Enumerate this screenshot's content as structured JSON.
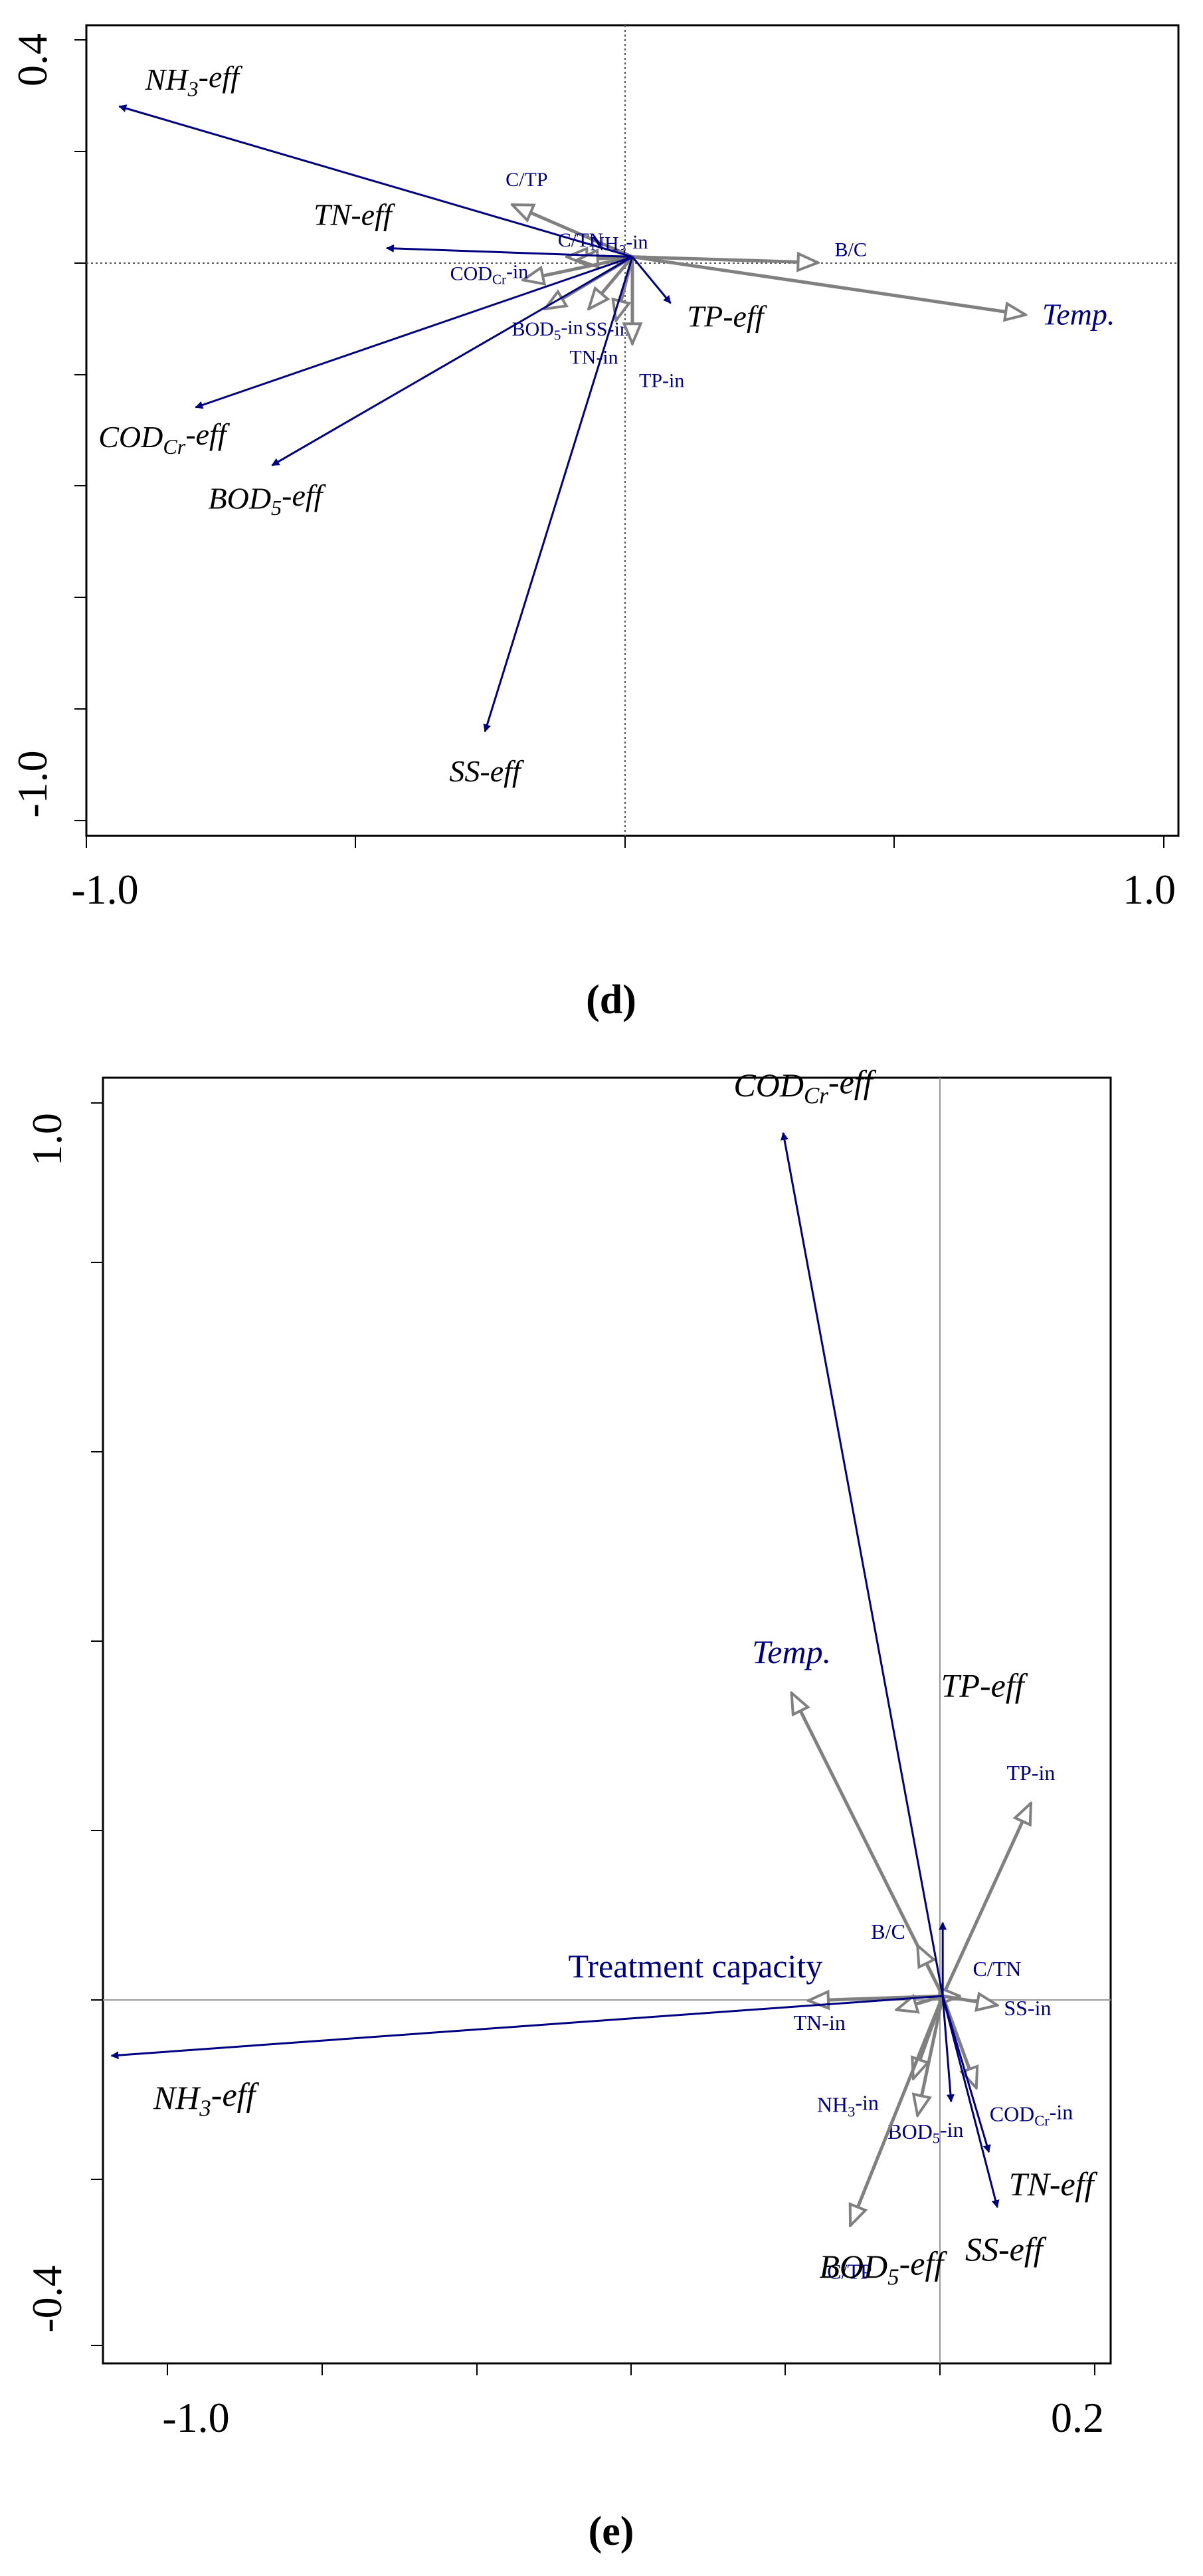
{
  "chart_data": [
    {
      "type": "biplot",
      "panel_label": "(d)",
      "xlim": [
        -1.0,
        1.0
      ],
      "ylim": [
        -1.0,
        0.4
      ],
      "x_tick_labels": [
        "-1.0",
        "1.0"
      ],
      "y_tick_labels": [
        "0.4",
        "-1.0"
      ],
      "grid": false,
      "colors": {
        "response": "#000080",
        "explanatory": "#808080",
        "frame": "#000000"
      },
      "response_vectors": [
        {
          "label": "NH3-eff",
          "base": "NH",
          "sub": "3",
          "suffix": "-eff",
          "x": -0.94,
          "y": 0.26
        },
        {
          "label": "TN-eff",
          "base": "TN-eff",
          "sub": "",
          "suffix": "",
          "x": -0.45,
          "y": 0.015
        },
        {
          "label": "TP-eff",
          "base": "TP-eff",
          "sub": "",
          "suffix": "",
          "x": 0.07,
          "y": -0.08
        },
        {
          "label": "CODCr-eff",
          "base": "COD",
          "sub": "Cr",
          "suffix": "-eff",
          "x": -0.8,
          "y": -0.26
        },
        {
          "label": "BOD5-eff",
          "base": "BOD",
          "sub": "5",
          "suffix": "-eff",
          "x": -0.66,
          "y": -0.36
        },
        {
          "label": "SS-eff",
          "base": "SS-eff",
          "sub": "",
          "suffix": "",
          "x": -0.27,
          "y": -0.82
        }
      ],
      "explanatory_vectors": [
        {
          "label": "C/TP",
          "base": "C/TP",
          "sub": "",
          "suffix": "",
          "x": -0.22,
          "y": 0.09
        },
        {
          "label": "NH3-in",
          "base": "NH",
          "sub": "3",
          "suffix": "-in",
          "x": -0.12,
          "y": 0.0
        },
        {
          "label": "C/TN",
          "base": "C/TN",
          "sub": "",
          "suffix": "",
          "x": -0.1,
          "y": -0.005
        },
        {
          "label": "CODCr-in",
          "base": "COD",
          "sub": "Cr",
          "suffix": "-in",
          "x": -0.2,
          "y": -0.04
        },
        {
          "label": "BOD5-in",
          "base": "BOD",
          "sub": "5",
          "suffix": "-in",
          "x": -0.16,
          "y": -0.09
        },
        {
          "label": "SS-in",
          "base": "SS-in",
          "sub": "",
          "suffix": "",
          "x": -0.08,
          "y": -0.09
        },
        {
          "label": "TN-in",
          "base": "TN-in",
          "sub": "",
          "suffix": "",
          "x": -0.03,
          "y": -0.11
        },
        {
          "label": "TP-in",
          "base": "TP-in",
          "sub": "",
          "suffix": "",
          "x": 0.0,
          "y": -0.15
        },
        {
          "label": "B/C",
          "base": "B/C",
          "sub": "",
          "suffix": "",
          "x": 0.34,
          "y": -0.01
        },
        {
          "label": "Temp.",
          "base": "Temp.",
          "sub": "",
          "suffix": "",
          "x": 0.72,
          "y": -0.1
        }
      ]
    },
    {
      "type": "biplot",
      "panel_label": "(e)",
      "xlim": [
        -1.0,
        0.2
      ],
      "ylim": [
        -0.4,
        1.0
      ],
      "x_tick_labels": [
        "-1.0",
        "0.2"
      ],
      "y_tick_labels": [
        "1.0",
        "-0.4"
      ],
      "grid": false,
      "colors": {
        "response": "#000080",
        "explanatory": "#808080",
        "frame": "#000000"
      },
      "response_vectors": [
        {
          "label": "CODCr-eff",
          "base": "COD",
          "sub": "Cr",
          "suffix": "-eff",
          "x": -0.19,
          "y": 0.94
        },
        {
          "label": "TP-eff",
          "base": "TP-eff",
          "sub": "",
          "suffix": "",
          "x": 0.0,
          "y": 0.08
        },
        {
          "label": "NH3-eff",
          "base": "NH",
          "sub": "3",
          "suffix": "-eff",
          "x": -0.99,
          "y": -0.065
        },
        {
          "label": "TN-eff",
          "base": "TN-eff",
          "sub": "",
          "suffix": "",
          "x": 0.055,
          "y": -0.17
        },
        {
          "label": "SS-eff",
          "base": "SS-eff",
          "sub": "",
          "suffix": "",
          "x": 0.065,
          "y": -0.23
        },
        {
          "label": "BOD5-eff",
          "base": "BOD",
          "sub": "5",
          "suffix": "-eff",
          "x": 0.01,
          "y": -0.115
        }
      ],
      "explanatory_vectors": [
        {
          "label": "Temp.",
          "base": "Temp.",
          "sub": "",
          "suffix": "",
          "x": -0.18,
          "y": 0.33
        },
        {
          "label": "TP-in",
          "base": "TP-in",
          "sub": "",
          "suffix": "",
          "x": 0.105,
          "y": 0.21
        },
        {
          "label": "B/C",
          "base": "B/C",
          "sub": "",
          "suffix": "",
          "x": -0.03,
          "y": 0.055
        },
        {
          "label": "C/TN",
          "base": "C/TN",
          "sub": "",
          "suffix": "",
          "x": 0.02,
          "y": 0.0
        },
        {
          "label": "SS-in",
          "base": "SS-in",
          "sub": "",
          "suffix": "",
          "x": 0.065,
          "y": -0.01
        },
        {
          "label": "Treatment capacity",
          "base": "Treatment capacity",
          "sub": "",
          "suffix": "",
          "x": -0.16,
          "y": -0.005
        },
        {
          "label": "TN-in",
          "base": "TN-in",
          "sub": "",
          "suffix": "",
          "x": -0.055,
          "y": -0.015
        },
        {
          "label": "NH3-in",
          "base": "NH",
          "sub": "3",
          "suffix": "-in",
          "x": -0.035,
          "y": -0.09
        },
        {
          "label": "CODCr-in",
          "base": "COD",
          "sub": "Cr",
          "suffix": "-in",
          "x": 0.04,
          "y": -0.1
        },
        {
          "label": "BOD5-in",
          "base": "BOD",
          "sub": "5",
          "suffix": "-in",
          "x": -0.03,
          "y": -0.13
        },
        {
          "label": "C/TP",
          "base": "C/TP",
          "sub": "",
          "suffix": "",
          "x": -0.11,
          "y": -0.25
        }
      ]
    }
  ]
}
